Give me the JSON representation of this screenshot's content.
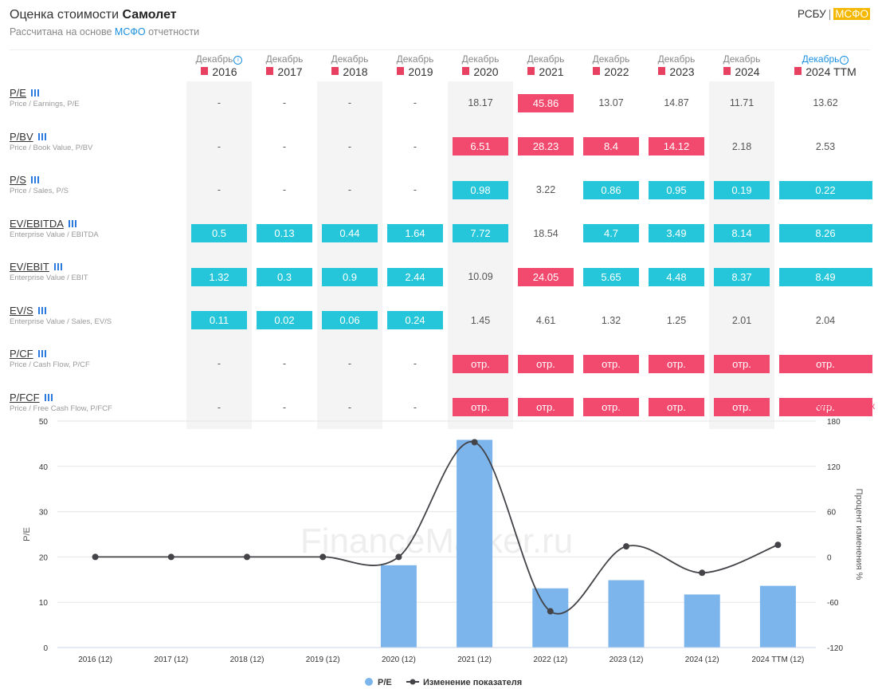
{
  "header": {
    "title_prefix": "Оценка стоимости",
    "company": "Самолет",
    "subtitle_prefix": "Рассчитана на основе",
    "subtitle_link": "МСФО",
    "subtitle_suffix": "отчетности",
    "standard_rsbu": "РСБУ",
    "standard_separator": "|",
    "standard_msfo": "МСФО"
  },
  "icons": {
    "pdf": "pdf-icon",
    "info": "info-icon",
    "chart": "bar-chart-icon",
    "pdf_glyph": "▘",
    "info_glyph": "i"
  },
  "columns": [
    {
      "month": "Декабрь",
      "year": "2016",
      "info": true
    },
    {
      "month": "Декабрь",
      "year": "2017"
    },
    {
      "month": "Декабрь",
      "year": "2018"
    },
    {
      "month": "Декабрь",
      "year": "2019"
    },
    {
      "month": "Декабрь",
      "year": "2020"
    },
    {
      "month": "Декабрь",
      "year": "2021"
    },
    {
      "month": "Декабрь",
      "year": "2022"
    },
    {
      "month": "Декабрь",
      "year": "2023"
    },
    {
      "month": "Декабрь",
      "year": "2024"
    },
    {
      "month": "Декабрь",
      "year": "2024 TTM",
      "info": true,
      "ttm": true
    }
  ],
  "metrics": [
    {
      "name": "P/E",
      "desc": "Price / Earnings, P/E",
      "values": [
        "-",
        "-",
        "-",
        "-",
        "18.17",
        "45.86",
        "13.07",
        "14.87",
        "11.71",
        "13.62"
      ],
      "states": [
        "",
        "",
        "",
        "",
        "",
        "red",
        "",
        "",
        "",
        ""
      ]
    },
    {
      "name": "P/BV",
      "desc": "Price / Book Value, P/BV",
      "values": [
        "-",
        "-",
        "-",
        "-",
        "6.51",
        "28.23",
        "8.4",
        "14.12",
        "2.18",
        "2.53"
      ],
      "states": [
        "",
        "",
        "",
        "",
        "red",
        "red",
        "red",
        "red",
        "",
        ""
      ]
    },
    {
      "name": "P/S",
      "desc": "Price / Sales, P/S",
      "values": [
        "-",
        "-",
        "-",
        "-",
        "0.98",
        "3.22",
        "0.86",
        "0.95",
        "0.19",
        "0.22"
      ],
      "states": [
        "",
        "",
        "",
        "",
        "cyan",
        "",
        "cyan",
        "cyan",
        "cyan",
        "cyan"
      ]
    },
    {
      "name": "EV/EBITDA",
      "desc": "Enterprise Value / EBITDA",
      "values": [
        "0.5",
        "0.13",
        "0.44",
        "1.64",
        "7.72",
        "18.54",
        "4.7",
        "3.49",
        "8.14",
        "8.26"
      ],
      "states": [
        "cyan",
        "cyan",
        "cyan",
        "cyan",
        "cyan",
        "",
        "cyan",
        "cyan",
        "cyan",
        "cyan"
      ]
    },
    {
      "name": "EV/EBIT",
      "desc": "Enterprise Value / EBIT",
      "values": [
        "1.32",
        "0.3",
        "0.9",
        "2.44",
        "10.09",
        "24.05",
        "5.65",
        "4.48",
        "8.37",
        "8.49"
      ],
      "states": [
        "cyan",
        "cyan",
        "cyan",
        "cyan",
        "",
        "red",
        "cyan",
        "cyan",
        "cyan",
        "cyan"
      ]
    },
    {
      "name": "EV/S",
      "desc": "Enterprise Value / Sales, EV/S",
      "values": [
        "0.11",
        "0.02",
        "0.06",
        "0.24",
        "1.45",
        "4.61",
        "1.32",
        "1.25",
        "2.01",
        "2.04"
      ],
      "states": [
        "cyan",
        "cyan",
        "cyan",
        "cyan",
        "",
        "",
        "",
        "",
        "",
        ""
      ]
    },
    {
      "name": "P/CF",
      "desc": "Price / Cash Flow, P/CF",
      "values": [
        "-",
        "-",
        "-",
        "-",
        "отр.",
        "отр.",
        "отр.",
        "отр.",
        "отр.",
        "отр."
      ],
      "states": [
        "",
        "",
        "",
        "",
        "red",
        "red",
        "red",
        "red",
        "red",
        "red"
      ]
    },
    {
      "name": "P/FCF",
      "desc": "Price / Free Cash Flow, P/FCF",
      "values": [
        "-",
        "-",
        "-",
        "-",
        "отр.",
        "отр.",
        "отр.",
        "отр.",
        "отр.",
        "отр."
      ],
      "states": [
        "",
        "",
        "",
        "",
        "red",
        "red",
        "red",
        "red",
        "red",
        "red"
      ]
    }
  ],
  "hide_chart": "✕ Скрыть график",
  "watermark": "FinanceMarker.ru",
  "colors": {
    "red": "#f24a6e",
    "cyan": "#26c6da",
    "bar": "#7cb5ec",
    "line": "#434348",
    "accent": "#1a8fe0",
    "gold": "#f5b800"
  },
  "chart_data": {
    "type": "bar",
    "categories": [
      "2016 (12)",
      "2017 (12)",
      "2018 (12)",
      "2019 (12)",
      "2020 (12)",
      "2021 (12)",
      "2022 (12)",
      "2023 (12)",
      "2024 (12)",
      "2024 TTM (12)"
    ],
    "series": [
      {
        "name": "P/E",
        "type": "bar",
        "axis": "left",
        "values": [
          null,
          null,
          null,
          null,
          18.17,
          45.86,
          13.07,
          14.87,
          11.71,
          13.62
        ]
      },
      {
        "name": "Изменение показателя",
        "type": "line",
        "axis": "right",
        "values": [
          0,
          0,
          0,
          0,
          0,
          152,
          -72,
          14,
          -21,
          16
        ]
      }
    ],
    "ylabel": "P/E",
    "ylabel_right": "Процент изменения %",
    "ylim": [
      0,
      50
    ],
    "yticks": [
      0,
      10,
      20,
      30,
      40,
      50
    ],
    "ylim_right": [
      -120,
      180
    ],
    "yticks_right": [
      -120,
      -60,
      0,
      60,
      120,
      180
    ],
    "legend": "bottom-center",
    "grid": true
  }
}
